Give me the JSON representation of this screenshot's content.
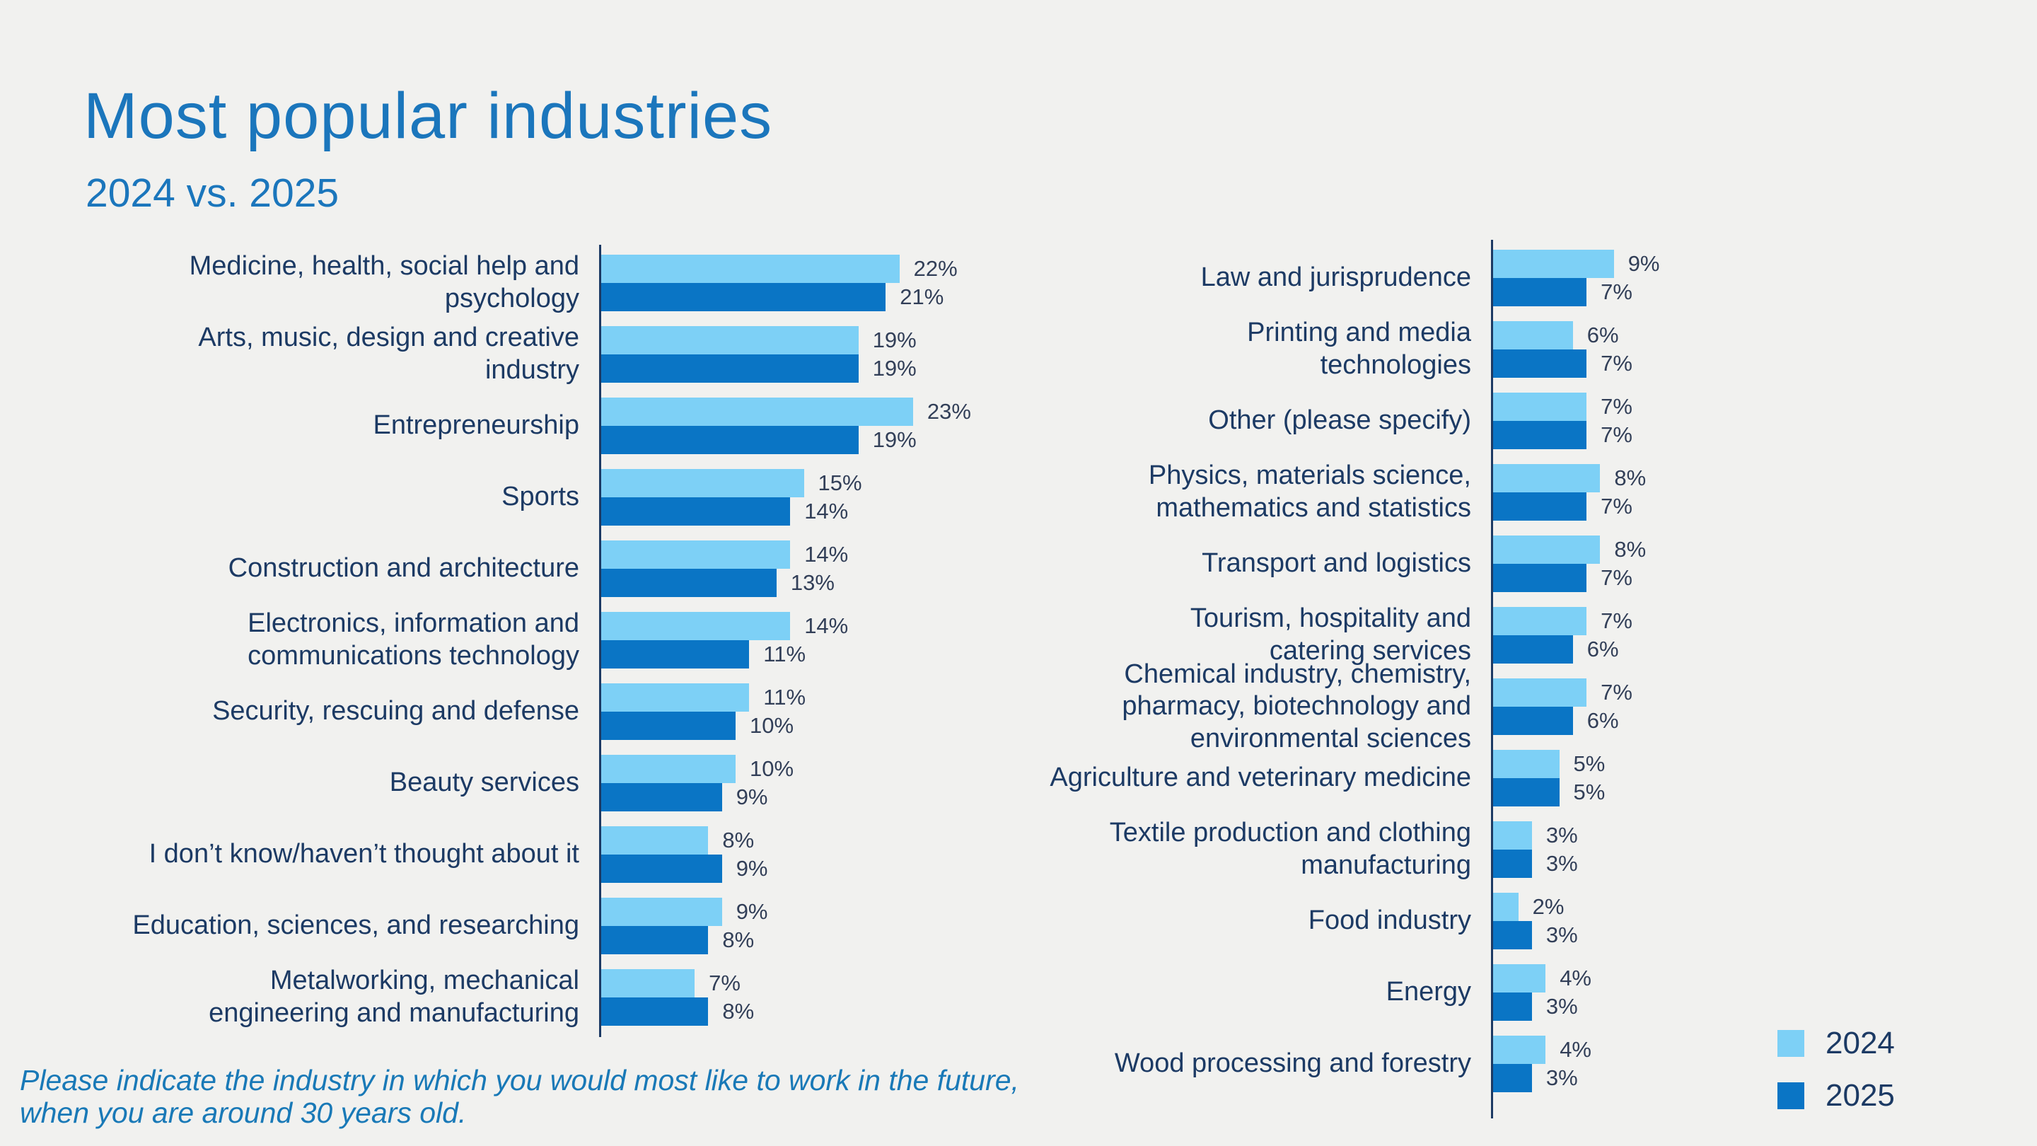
{
  "title": "Most popular industries",
  "subtitle": "2024 vs. 2025",
  "footnote": {
    "line1": "Please indicate the industry in which you would most like to work in the future,",
    "line2": "when you are around 30 years old."
  },
  "legend": {
    "items": [
      {
        "label": "2024",
        "color": "#7dd0f6"
      },
      {
        "label": "2025",
        "color": "#0a75c5"
      }
    ]
  },
  "colors": {
    "background": "#f1f1ef",
    "title": "#1b76bc",
    "category_label": "#1c3a64",
    "value_label": "#323f58",
    "bar_2024": "#7dd0f6",
    "bar_2025": "#0a75c5",
    "axis": "#1c3a64",
    "footnote": "#1979b7"
  },
  "chart_data": {
    "type": "bar",
    "orientation": "horizontal",
    "unit": "%",
    "grid": false,
    "legend_position": "bottom-right",
    "xlim": [
      0,
      25
    ],
    "series_names": [
      "2024",
      "2025"
    ],
    "panels": [
      {
        "id": "left",
        "categories": [
          "Medicine, health, social help and\npsychology",
          "Arts, music, design and creative\nindustry",
          "Entrepreneurship",
          "Sports",
          "Construction and architecture",
          "Electronics, information and\ncommunications technology",
          "Security, rescuing and defense",
          "Beauty services",
          "I don’t know/haven’t thought about it",
          "Education, sciences, and researching",
          "Metalworking, mechanical\nengineering and manufacturing"
        ],
        "series": [
          {
            "name": "2024",
            "values": [
              22,
              19,
              23,
              15,
              14,
              14,
              11,
              10,
              8,
              9,
              7
            ]
          },
          {
            "name": "2025",
            "values": [
              21,
              19,
              19,
              14,
              13,
              11,
              10,
              9,
              9,
              8,
              8
            ]
          }
        ]
      },
      {
        "id": "right",
        "categories": [
          "Law and jurisprudence",
          "Printing and media\ntechnologies",
          "Other (please specify)",
          "Physics, materials science,\nmathematics and statistics",
          "Transport and logistics",
          "Tourism, hospitality and\ncatering services",
          "Chemical industry, chemistry,\npharmacy, biotechnology and\nenvironmental sciences",
          "Agriculture and veterinary medicine",
          "Textile production and clothing\nmanufacturing",
          "Food industry",
          "Energy",
          "Wood processing and forestry"
        ],
        "series": [
          {
            "name": "2024",
            "values": [
              9,
              6,
              7,
              8,
              8,
              7,
              7,
              5,
              3,
              2,
              4,
              4
            ]
          },
          {
            "name": "2025",
            "values": [
              7,
              7,
              7,
              7,
              7,
              6,
              6,
              5,
              3,
              3,
              3,
              3
            ]
          }
        ]
      }
    ]
  }
}
